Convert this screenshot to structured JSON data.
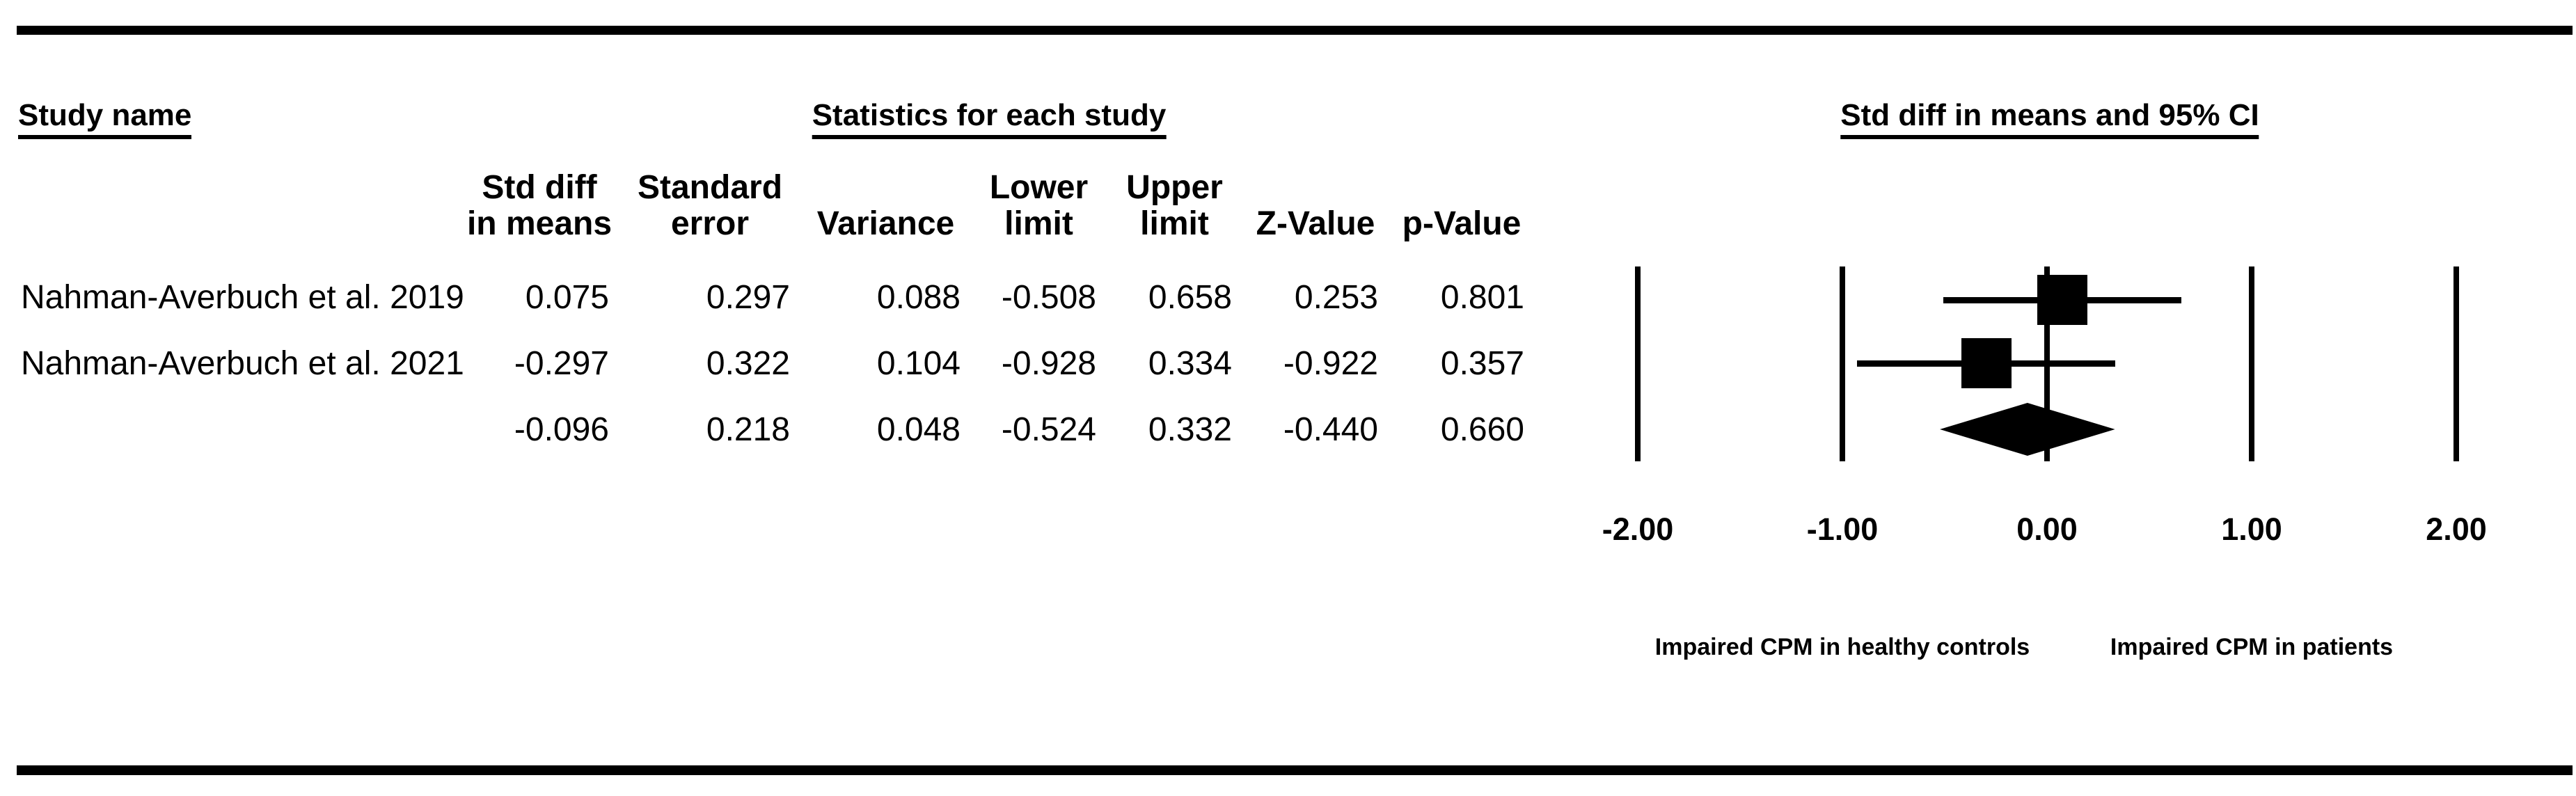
{
  "headers": {
    "study_name": "Study name",
    "statistics": "Statistics for each study",
    "plot": "Std diff in means and 95% CI"
  },
  "stats_table": {
    "column_headers": [
      "Std diff\nin means",
      "Standard\nerror",
      "Variance",
      "Lower\nlimit",
      "Upper\nlimit",
      "Z-Value",
      "p-Value"
    ],
    "rows": [
      [
        "Nahman-Averbuch et al. 2019",
        "0.075",
        "0.297",
        "0.088",
        "-0.508",
        "0.658",
        "0.253",
        "0.801"
      ],
      [
        "Nahman-Averbuch et al. 2021",
        "-0.297",
        "0.322",
        "0.104",
        "-0.928",
        "0.334",
        "-0.922",
        "0.357"
      ],
      [
        "",
        "-0.096",
        "0.218",
        "0.048",
        "-0.524",
        "0.332",
        "-0.440",
        "0.660"
      ]
    ]
  },
  "chart_data": {
    "type": "forest",
    "title": "Std diff in means and 95% CI",
    "effect_measure": "Std diff in means",
    "x_axis": {
      "min": -2.0,
      "max": 2.0,
      "tick_step": 1.0
    },
    "x_ticks": [
      {
        "value": -2.0,
        "label": "-2.00"
      },
      {
        "value": -1.0,
        "label": "-1.00"
      },
      {
        "value": 0.0,
        "label": "0.00"
      },
      {
        "value": 1.0,
        "label": "1.00"
      },
      {
        "value": 2.0,
        "label": "2.00"
      }
    ],
    "studies": [
      {
        "name": "Nahman-Averbuch et al. 2019",
        "mean": 0.075,
        "lower": -0.508,
        "upper": 0.658,
        "marker": "square"
      },
      {
        "name": "Nahman-Averbuch et al. 2021",
        "mean": -0.297,
        "lower": -0.928,
        "upper": 0.334,
        "marker": "square"
      }
    ],
    "summary": {
      "mean": -0.096,
      "lower": -0.524,
      "upper": 0.332,
      "marker": "diamond"
    },
    "footer_labels": [
      {
        "text": "Impaired CPM in healthy controls",
        "anchor_value": -1.0
      },
      {
        "text": "Impaired CPM in patients",
        "anchor_value": 1.0
      }
    ],
    "ink_color": "#000000",
    "background_color": "#ffffff"
  }
}
